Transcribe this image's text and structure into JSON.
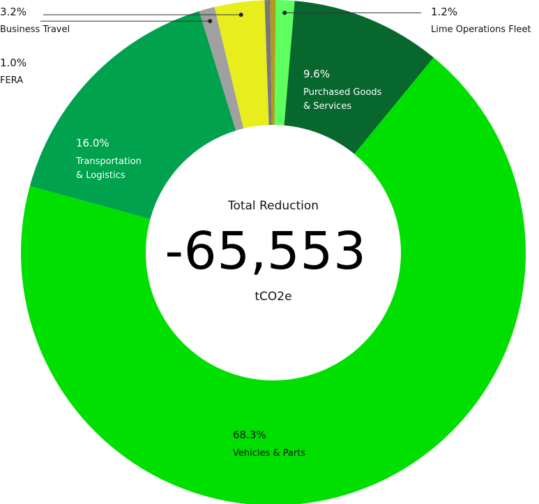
{
  "center": {
    "title": "Total Reduction",
    "value": "-65,553",
    "unit": "tCO2e"
  },
  "chart_data": {
    "type": "pie",
    "subtype": "donut",
    "title": "",
    "slices": [
      {
        "label": "Lime Operations Fleet",
        "value": 1.2,
        "value_label": "1.2%",
        "color": "#5eff5e",
        "label_mode": "outside",
        "text_color": "#111111"
      },
      {
        "label": "Purchased Goods & Services",
        "label_lines": [
          "Purchased Goods",
          "& Services"
        ],
        "value": 9.6,
        "value_label": "9.6%",
        "color": "#07672d",
        "label_mode": "inside",
        "text_color": "#ffffff"
      },
      {
        "label": "Vehicles & Parts",
        "value": 68.3,
        "value_label": "68.3%",
        "color": "#00df00",
        "label_mode": "inside",
        "text_color": "#111111"
      },
      {
        "label": "Transportation & Logistics",
        "label_lines": [
          "Transportation",
          "& Logistics"
        ],
        "value": 16.0,
        "value_label": "16.0%",
        "color": "#00a24e",
        "label_mode": "inside",
        "text_color": "#ffffff"
      },
      {
        "label": "FERA",
        "value": 1.0,
        "value_label": "1.0%",
        "color": "#a0a0a0",
        "label_mode": "outside",
        "text_color": "#111111"
      },
      {
        "label": "Business Travel",
        "value": 3.2,
        "value_label": "3.2%",
        "color": "#e8ee1e",
        "label_mode": "outside",
        "text_color": "#111111"
      },
      {
        "label": "",
        "value": 0.35,
        "value_label": "",
        "color": "#777777",
        "label_mode": "none"
      },
      {
        "label": "",
        "value": 0.35,
        "value_label": "",
        "color": "#b09b1c",
        "label_mode": "none"
      }
    ]
  }
}
